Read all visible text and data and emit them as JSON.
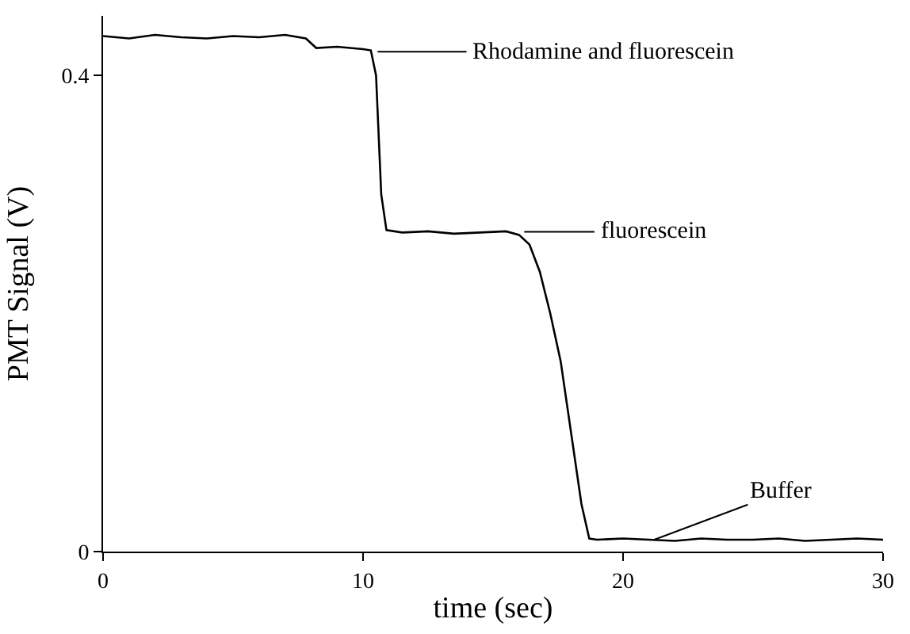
{
  "chart_data": {
    "type": "line",
    "xlabel": "time (sec)",
    "ylabel": "PMT Signal (V)",
    "x": [
      0,
      1,
      2,
      3,
      4,
      5,
      6,
      7,
      7.8,
      8.2,
      9,
      10,
      10.3,
      10.5,
      10.7,
      10.9,
      11.5,
      12.5,
      13.5,
      14.5,
      15.5,
      16.0,
      16.4,
      16.8,
      17.2,
      17.6,
      18.0,
      18.4,
      18.7,
      19,
      20,
      21,
      22,
      23,
      24,
      25,
      26,
      27,
      28,
      29,
      30
    ],
    "series": [
      {
        "color": "#000000",
        "values": [
          0.433,
          0.431,
          0.434,
          0.432,
          0.431,
          0.433,
          0.432,
          0.434,
          0.431,
          0.423,
          0.424,
          0.422,
          0.421,
          0.4,
          0.3,
          0.27,
          0.268,
          0.269,
          0.267,
          0.268,
          0.269,
          0.266,
          0.258,
          0.235,
          0.2,
          0.16,
          0.1,
          0.04,
          0.011,
          0.01,
          0.011,
          0.01,
          0.009,
          0.011,
          0.01,
          0.01,
          0.011,
          0.009,
          0.01,
          0.011,
          0.01
        ]
      }
    ],
    "xlim": [
      0,
      30
    ],
    "xticks": [
      0,
      10,
      20,
      30
    ],
    "ylim": [
      0,
      0.45
    ],
    "yticks": [
      0,
      0.4
    ],
    "marker": "none",
    "line_style": "solid",
    "annotations": [
      "Rhodamine and fluorescein",
      "fluorescein",
      {
        "text": "Buffer",
        "x": 21.2,
        "y": 0.01
      }
    ]
  }
}
